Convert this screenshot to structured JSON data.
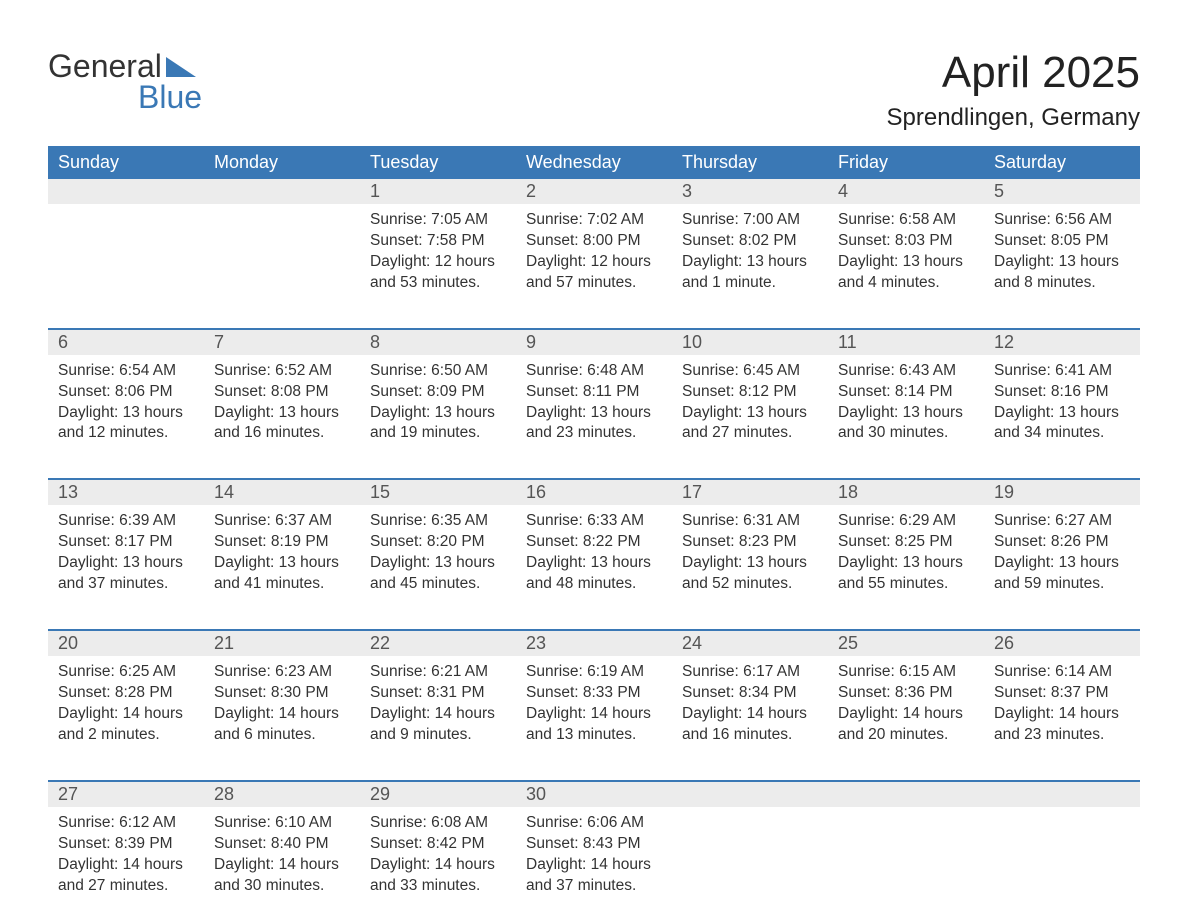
{
  "logo": {
    "text_top": "General",
    "text_bottom": "Blue",
    "brand_color": "#3a78b5"
  },
  "title": "April 2025",
  "location": "Sprendlingen, Germany",
  "colors": {
    "header_bg": "#3a78b5",
    "header_text": "#ffffff",
    "daynum_bg": "#ececec",
    "text": "#333333",
    "week_border": "#3a78b5",
    "background": "#ffffff"
  },
  "typography": {
    "title_fontsize": 44,
    "location_fontsize": 24,
    "dow_fontsize": 18,
    "daynum_fontsize": 18,
    "cell_fontsize": 15.5
  },
  "days_of_week": [
    "Sunday",
    "Monday",
    "Tuesday",
    "Wednesday",
    "Thursday",
    "Friday",
    "Saturday"
  ],
  "weeks": [
    [
      {
        "day": "",
        "sunrise": "",
        "sunset": "",
        "daylight": ""
      },
      {
        "day": "",
        "sunrise": "",
        "sunset": "",
        "daylight": ""
      },
      {
        "day": "1",
        "sunrise": "Sunrise: 7:05 AM",
        "sunset": "Sunset: 7:58 PM",
        "daylight": "Daylight: 12 hours and 53 minutes."
      },
      {
        "day": "2",
        "sunrise": "Sunrise: 7:02 AM",
        "sunset": "Sunset: 8:00 PM",
        "daylight": "Daylight: 12 hours and 57 minutes."
      },
      {
        "day": "3",
        "sunrise": "Sunrise: 7:00 AM",
        "sunset": "Sunset: 8:02 PM",
        "daylight": "Daylight: 13 hours and 1 minute."
      },
      {
        "day": "4",
        "sunrise": "Sunrise: 6:58 AM",
        "sunset": "Sunset: 8:03 PM",
        "daylight": "Daylight: 13 hours and 4 minutes."
      },
      {
        "day": "5",
        "sunrise": "Sunrise: 6:56 AM",
        "sunset": "Sunset: 8:05 PM",
        "daylight": "Daylight: 13 hours and 8 minutes."
      }
    ],
    [
      {
        "day": "6",
        "sunrise": "Sunrise: 6:54 AM",
        "sunset": "Sunset: 8:06 PM",
        "daylight": "Daylight: 13 hours and 12 minutes."
      },
      {
        "day": "7",
        "sunrise": "Sunrise: 6:52 AM",
        "sunset": "Sunset: 8:08 PM",
        "daylight": "Daylight: 13 hours and 16 minutes."
      },
      {
        "day": "8",
        "sunrise": "Sunrise: 6:50 AM",
        "sunset": "Sunset: 8:09 PM",
        "daylight": "Daylight: 13 hours and 19 minutes."
      },
      {
        "day": "9",
        "sunrise": "Sunrise: 6:48 AM",
        "sunset": "Sunset: 8:11 PM",
        "daylight": "Daylight: 13 hours and 23 minutes."
      },
      {
        "day": "10",
        "sunrise": "Sunrise: 6:45 AM",
        "sunset": "Sunset: 8:12 PM",
        "daylight": "Daylight: 13 hours and 27 minutes."
      },
      {
        "day": "11",
        "sunrise": "Sunrise: 6:43 AM",
        "sunset": "Sunset: 8:14 PM",
        "daylight": "Daylight: 13 hours and 30 minutes."
      },
      {
        "day": "12",
        "sunrise": "Sunrise: 6:41 AM",
        "sunset": "Sunset: 8:16 PM",
        "daylight": "Daylight: 13 hours and 34 minutes."
      }
    ],
    [
      {
        "day": "13",
        "sunrise": "Sunrise: 6:39 AM",
        "sunset": "Sunset: 8:17 PM",
        "daylight": "Daylight: 13 hours and 37 minutes."
      },
      {
        "day": "14",
        "sunrise": "Sunrise: 6:37 AM",
        "sunset": "Sunset: 8:19 PM",
        "daylight": "Daylight: 13 hours and 41 minutes."
      },
      {
        "day": "15",
        "sunrise": "Sunrise: 6:35 AM",
        "sunset": "Sunset: 8:20 PM",
        "daylight": "Daylight: 13 hours and 45 minutes."
      },
      {
        "day": "16",
        "sunrise": "Sunrise: 6:33 AM",
        "sunset": "Sunset: 8:22 PM",
        "daylight": "Daylight: 13 hours and 48 minutes."
      },
      {
        "day": "17",
        "sunrise": "Sunrise: 6:31 AM",
        "sunset": "Sunset: 8:23 PM",
        "daylight": "Daylight: 13 hours and 52 minutes."
      },
      {
        "day": "18",
        "sunrise": "Sunrise: 6:29 AM",
        "sunset": "Sunset: 8:25 PM",
        "daylight": "Daylight: 13 hours and 55 minutes."
      },
      {
        "day": "19",
        "sunrise": "Sunrise: 6:27 AM",
        "sunset": "Sunset: 8:26 PM",
        "daylight": "Daylight: 13 hours and 59 minutes."
      }
    ],
    [
      {
        "day": "20",
        "sunrise": "Sunrise: 6:25 AM",
        "sunset": "Sunset: 8:28 PM",
        "daylight": "Daylight: 14 hours and 2 minutes."
      },
      {
        "day": "21",
        "sunrise": "Sunrise: 6:23 AM",
        "sunset": "Sunset: 8:30 PM",
        "daylight": "Daylight: 14 hours and 6 minutes."
      },
      {
        "day": "22",
        "sunrise": "Sunrise: 6:21 AM",
        "sunset": "Sunset: 8:31 PM",
        "daylight": "Daylight: 14 hours and 9 minutes."
      },
      {
        "day": "23",
        "sunrise": "Sunrise: 6:19 AM",
        "sunset": "Sunset: 8:33 PM",
        "daylight": "Daylight: 14 hours and 13 minutes."
      },
      {
        "day": "24",
        "sunrise": "Sunrise: 6:17 AM",
        "sunset": "Sunset: 8:34 PM",
        "daylight": "Daylight: 14 hours and 16 minutes."
      },
      {
        "day": "25",
        "sunrise": "Sunrise: 6:15 AM",
        "sunset": "Sunset: 8:36 PM",
        "daylight": "Daylight: 14 hours and 20 minutes."
      },
      {
        "day": "26",
        "sunrise": "Sunrise: 6:14 AM",
        "sunset": "Sunset: 8:37 PM",
        "daylight": "Daylight: 14 hours and 23 minutes."
      }
    ],
    [
      {
        "day": "27",
        "sunrise": "Sunrise: 6:12 AM",
        "sunset": "Sunset: 8:39 PM",
        "daylight": "Daylight: 14 hours and 27 minutes."
      },
      {
        "day": "28",
        "sunrise": "Sunrise: 6:10 AM",
        "sunset": "Sunset: 8:40 PM",
        "daylight": "Daylight: 14 hours and 30 minutes."
      },
      {
        "day": "29",
        "sunrise": "Sunrise: 6:08 AM",
        "sunset": "Sunset: 8:42 PM",
        "daylight": "Daylight: 14 hours and 33 minutes."
      },
      {
        "day": "30",
        "sunrise": "Sunrise: 6:06 AM",
        "sunset": "Sunset: 8:43 PM",
        "daylight": "Daylight: 14 hours and 37 minutes."
      },
      {
        "day": "",
        "sunrise": "",
        "sunset": "",
        "daylight": ""
      },
      {
        "day": "",
        "sunrise": "",
        "sunset": "",
        "daylight": ""
      },
      {
        "day": "",
        "sunrise": "",
        "sunset": "",
        "daylight": ""
      }
    ]
  ]
}
